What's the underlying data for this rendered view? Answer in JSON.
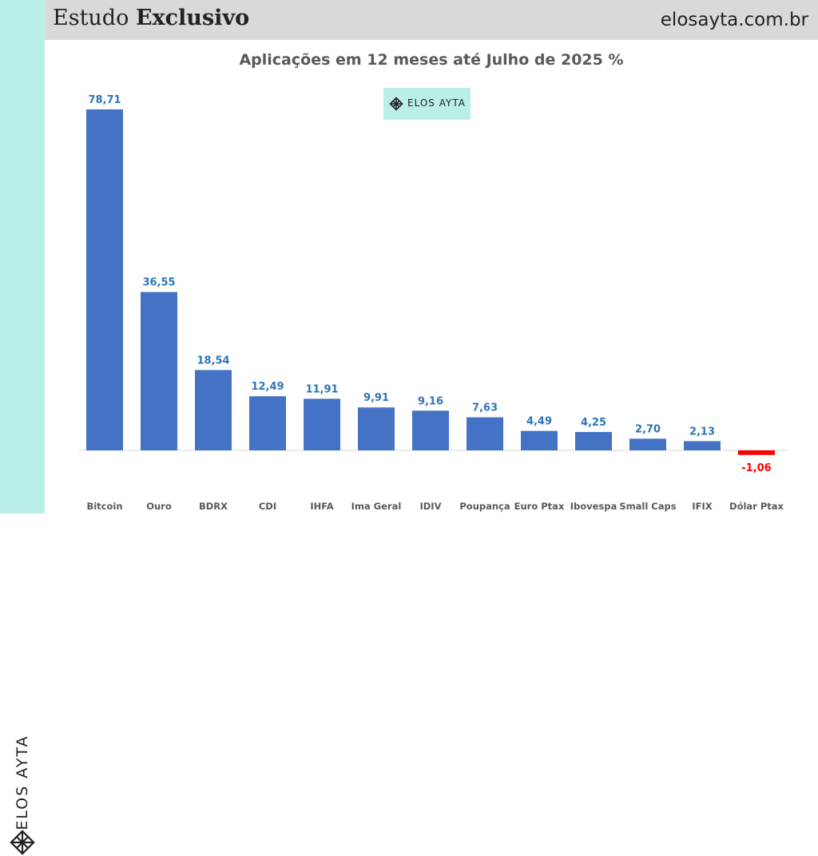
{
  "header": {
    "title_light": "Estudo",
    "title_bold": "Exclusivo",
    "url": "elosayta.com.br"
  },
  "brand": {
    "name": "ELOS AYTA",
    "color": "#b9efe7"
  },
  "colors": {
    "positive": "#4472c4",
    "negative": "#ff0000",
    "value_label": "#2e75b6"
  },
  "chart_data": {
    "type": "bar",
    "title": "Aplicações em 12 meses até Julho de 2025 %",
    "categories": [
      "Bitcoin",
      "Ouro",
      "BDRX",
      "CDI",
      "IHFA",
      "Ima Geral",
      "IDIV",
      "Poupança",
      "Euro Ptax",
      "Ibovespa",
      "Small Caps",
      "IFIX",
      "Dólar Ptax"
    ],
    "values": [
      78.71,
      36.55,
      18.54,
      12.49,
      11.91,
      9.91,
      9.16,
      7.63,
      4.49,
      4.25,
      2.7,
      2.13,
      -1.06
    ],
    "value_labels": [
      "78,71",
      "36,55",
      "18,54",
      "12,49",
      "11,91",
      "9,91",
      "9,16",
      "7,63",
      "4,49",
      "4,25",
      "2,70",
      "2,13",
      "-1,06"
    ],
    "ylim": [
      -1.06,
      78.71
    ],
    "grid": false,
    "legend": "none"
  }
}
